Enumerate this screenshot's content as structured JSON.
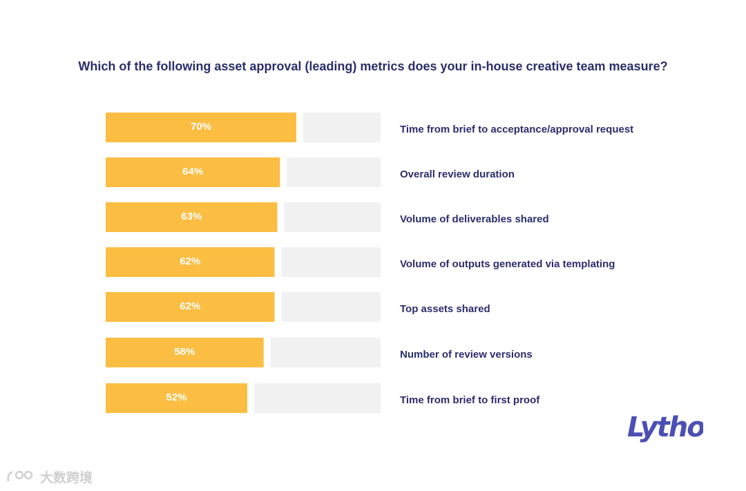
{
  "title": "Which of the following asset approval (leading) metrics does your in-house creative team measure?",
  "brand": {
    "logo_text": "Lytho",
    "color": "#4b4fb5"
  },
  "watermark": {
    "text": "大数跨境"
  },
  "colors": {
    "fill": "#fbbd42",
    "track": "#f1f1f1",
    "label": "#2b2d6b",
    "value_text": "#ffffff"
  },
  "chart_data": {
    "type": "bar",
    "orientation": "horizontal",
    "title": "Which of the following asset approval (leading) metrics does your in-house creative team measure?",
    "categories": [
      "Time from brief to acceptance/approval request",
      "Overall review duration",
      "Volume of deliverables shared",
      "Volume of outputs generated via templating",
      "Top assets shared",
      "Number of review versions",
      "Time from brief to first proof"
    ],
    "values": [
      70,
      64,
      63,
      62,
      62,
      58,
      52
    ],
    "value_labels": [
      "70%",
      "64%",
      "63%",
      "62%",
      "62%",
      "58%",
      "52%"
    ],
    "xlim": [
      0,
      100
    ],
    "grid": false,
    "legend": "none"
  }
}
